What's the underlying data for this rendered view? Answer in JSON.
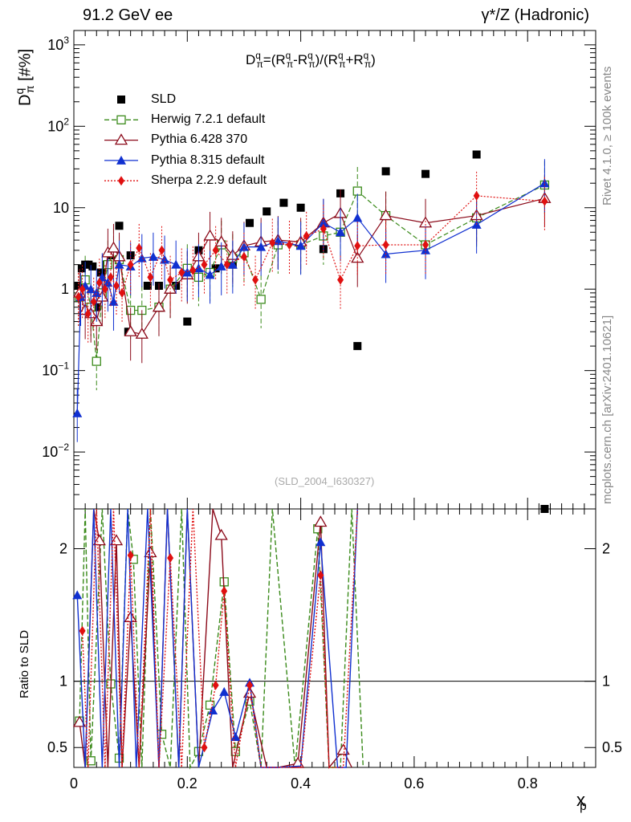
{
  "header": {
    "left": "91.2 GeV ee",
    "right": "γ*/Z (Hadronic)"
  },
  "side_labels": {
    "top": "Rivet 4.1.0, ≥ 100k events",
    "bottom": "mcplots.cern.ch [arXiv:2401.10621]"
  },
  "watermark": "(SLD_2004_I630327)",
  "chart_data": [
    {
      "type": "scatter",
      "title": "D^q_π^- = (R^q_π^- − R^q_π^+)/(R^q_π^- + R^q_π^+)",
      "title_parts": [
        "D",
        "q",
        "π",
        "=(R",
        "q",
        "π",
        "-R",
        "q",
        "π",
        ")/(R",
        "q",
        "π",
        "+R",
        "q",
        "π",
        ")"
      ],
      "ylabel_parts": [
        "D",
        "q",
        "π",
        " [#%]"
      ],
      "xlabel_parts": [
        "x",
        "p"
      ],
      "y_scale": "log",
      "ylim": [
        0.002,
        1500
      ],
      "xlim": [
        0,
        0.92
      ],
      "y_ticks": [
        {
          "v": 0.01,
          "m": "10",
          "e": "−2"
        },
        {
          "v": 0.1,
          "m": "10",
          "e": "−1"
        },
        {
          "v": 1,
          "m": "1",
          "e": ""
        },
        {
          "v": 10,
          "m": "10",
          "e": ""
        },
        {
          "v": 100,
          "m": "10",
          "e": "2"
        },
        {
          "v": 1000,
          "m": "10",
          "e": "3"
        }
      ],
      "legend_position": "top-left",
      "series": [
        {
          "name": "SLD",
          "color": "#000000",
          "marker": "square",
          "x": [
            0.008,
            0.014,
            0.02,
            0.026,
            0.033,
            0.04,
            0.048,
            0.058,
            0.068,
            0.08,
            0.096,
            0.1,
            0.13,
            0.15,
            0.18,
            0.2,
            0.22,
            0.25,
            0.28,
            0.31,
            0.34,
            0.37,
            0.4,
            0.44,
            0.47,
            0.5,
            0.55,
            0.62,
            0.71,
            0.83
          ],
          "y": [
            1.1,
            1.8,
            2.0,
            2.0,
            1.9,
            0.6,
            1.6,
            2.0,
            2.6,
            6.0,
            0.3,
            2.6,
            1.1,
            1.1,
            1.1,
            0.4,
            3.0,
            1.8,
            2.0,
            6.5,
            9.0,
            11.5,
            10.0,
            3.1,
            15.0,
            0.2,
            28.0,
            26.0,
            45.0,
            0.002
          ]
        },
        {
          "name": "Herwig 7.2.1 default",
          "color": "#3a8a1a",
          "marker": "open-square",
          "line": "dashed",
          "x": [
            0.01,
            0.02,
            0.03,
            0.04,
            0.05,
            0.06,
            0.07,
            0.08,
            0.1,
            0.12,
            0.15,
            0.17,
            0.2,
            0.22,
            0.24,
            0.26,
            0.28,
            0.3,
            0.33,
            0.36,
            0.4,
            0.44,
            0.47,
            0.5,
            0.55,
            0.62,
            0.71,
            0.83
          ],
          "y": [
            0.8,
            1.3,
            0.6,
            0.13,
            0.9,
            2.0,
            2.8,
            2.3,
            0.55,
            0.55,
            0.6,
            1.0,
            1.8,
            1.4,
            1.6,
            3.5,
            2.4,
            2.8,
            0.75,
            3.5,
            3.5,
            4.5,
            5.0,
            16.0,
            8.0,
            3.5,
            7.5,
            19.0
          ]
        },
        {
          "name": "Pythia 6.428 370",
          "color": "#8b0a1a",
          "marker": "open-triangle",
          "line": "solid",
          "x": [
            0.01,
            0.02,
            0.03,
            0.04,
            0.05,
            0.06,
            0.07,
            0.08,
            0.1,
            0.12,
            0.15,
            0.17,
            0.2,
            0.22,
            0.24,
            0.26,
            0.28,
            0.3,
            0.33,
            0.36,
            0.4,
            0.44,
            0.47,
            0.5,
            0.55,
            0.62,
            0.71,
            0.83
          ],
          "y": [
            0.9,
            0.55,
            0.5,
            0.4,
            0.8,
            2.8,
            3.2,
            2.5,
            0.3,
            0.28,
            0.6,
            1.0,
            1.5,
            2.5,
            4.5,
            3.8,
            2.6,
            3.4,
            3.8,
            4.0,
            3.8,
            6.5,
            8.5,
            2.4,
            8.0,
            6.5,
            8.0,
            13.0
          ]
        },
        {
          "name": "Pythia 8.315 default",
          "color": "#1030d0",
          "marker": "triangle",
          "line": "solid",
          "x": [
            0.006,
            0.012,
            0.02,
            0.03,
            0.04,
            0.05,
            0.06,
            0.07,
            0.08,
            0.1,
            0.12,
            0.14,
            0.16,
            0.18,
            0.2,
            0.22,
            0.24,
            0.26,
            0.28,
            0.3,
            0.33,
            0.36,
            0.4,
            0.44,
            0.47,
            0.5,
            0.55,
            0.62,
            0.71,
            0.83
          ],
          "y": [
            0.03,
            0.8,
            1.1,
            1.0,
            0.9,
            1.4,
            1.2,
            0.7,
            2.0,
            1.9,
            2.4,
            2.5,
            2.3,
            2.0,
            1.6,
            1.8,
            1.5,
            1.9,
            2.0,
            3.3,
            3.3,
            3.9,
            3.4,
            6.5,
            5.0,
            7.5,
            2.7,
            3.0,
            6.2,
            20.0
          ]
        },
        {
          "name": "Sherpa 2.2.9 default",
          "color": "#e01010",
          "marker": "diamond",
          "line": "dotted",
          "x": [
            0.008,
            0.015,
            0.025,
            0.035,
            0.045,
            0.055,
            0.065,
            0.075,
            0.085,
            0.1,
            0.115,
            0.135,
            0.155,
            0.17,
            0.19,
            0.21,
            0.23,
            0.25,
            0.27,
            0.3,
            0.32,
            0.35,
            0.38,
            0.41,
            0.44,
            0.47,
            0.5,
            0.55,
            0.62,
            0.71,
            0.83
          ],
          "y": [
            0.8,
            1.0,
            0.5,
            0.7,
            1.2,
            1.0,
            1.4,
            1.1,
            0.9,
            2.0,
            3.2,
            1.4,
            3.0,
            1.3,
            1.6,
            1.7,
            2.0,
            3.0,
            2.0,
            2.5,
            1.3,
            3.7,
            3.5,
            4.5,
            5.5,
            1.3,
            3.4,
            3.5,
            3.5,
            14.0,
            12.0
          ]
        }
      ]
    },
    {
      "type": "line",
      "ylabel": "Ratio to SLD",
      "ylim": [
        0.35,
        2.3
      ],
      "xlim": [
        0,
        0.92
      ],
      "x_ticks": [
        0,
        0.2,
        0.4,
        0.6,
        0.8
      ],
      "x_tick_labels": [
        "0",
        "0.2",
        "0.4",
        "0.6",
        "0.8"
      ],
      "y_ticks": [
        0.5,
        1,
        2
      ],
      "y_tick_labels": [
        "0.5",
        "1",
        "2"
      ],
      "reference_line": 1,
      "series": [
        {
          "name": "Herwig 7.2.1 default",
          "color": "#3a8a1a",
          "marker": "open-square",
          "line": "dashed",
          "x": [
            0.01,
            0.02,
            0.03,
            0.05,
            0.065,
            0.08,
            0.095,
            0.105,
            0.12,
            0.135,
            0.155,
            0.17,
            0.19,
            0.205,
            0.22,
            0.24,
            0.265,
            0.285,
            0.31,
            0.33,
            0.35,
            0.39,
            0.43,
            0.45,
            0.47,
            0.49,
            0.51
          ],
          "y": [
            0.7,
            2.4,
            0.4,
            2.4,
            0.98,
            0.42,
            2.4,
            1.92,
            0.35,
            2.4,
            0.6,
            0.35,
            2.4,
            0.35,
            0.47,
            0.82,
            1.75,
            0.47,
            0.85,
            0.35,
            2.4,
            0.35,
            2.15,
            0.35,
            0.35,
            2.4,
            0.35
          ]
        },
        {
          "name": "Pythia 6.428 370",
          "color": "#8b0a1a",
          "marker": "open-triangle",
          "line": "solid",
          "x": [
            0.01,
            0.02,
            0.035,
            0.045,
            0.06,
            0.075,
            0.085,
            0.1,
            0.115,
            0.135,
            0.15,
            0.165,
            0.185,
            0.2,
            0.22,
            0.245,
            0.26,
            0.28,
            0.31,
            0.34,
            0.36,
            0.395,
            0.435,
            0.45,
            0.475,
            0.49
          ],
          "y": [
            0.69,
            0.35,
            2.4,
            2.06,
            0.35,
            2.06,
            0.35,
            1.48,
            0.35,
            1.97,
            0.35,
            2.4,
            0.35,
            2.4,
            0.35,
            2.4,
            2.1,
            0.35,
            0.91,
            0.35,
            0.35,
            0.38,
            2.2,
            0.35,
            0.48,
            0.35
          ]
        },
        {
          "name": "Pythia 8.315 default",
          "color": "#1030d0",
          "marker": "triangle",
          "line": "solid",
          "x": [
            0.006,
            0.02,
            0.035,
            0.05,
            0.065,
            0.08,
            0.095,
            0.11,
            0.13,
            0.15,
            0.165,
            0.185,
            0.2,
            0.22,
            0.245,
            0.265,
            0.285,
            0.31,
            0.33,
            0.36,
            0.4,
            0.435,
            0.465,
            0.48,
            0.5
          ],
          "y": [
            1.65,
            0.35,
            2.4,
            0.35,
            2.4,
            0.35,
            2.4,
            0.35,
            2.4,
            0.35,
            2.4,
            0.35,
            2.4,
            0.35,
            0.78,
            0.92,
            0.58,
            0.99,
            0.35,
            0.35,
            0.36,
            2.05,
            0.35,
            0.35,
            2.4
          ]
        },
        {
          "name": "Sherpa 2.2.9 default",
          "color": "#e01010",
          "marker": "diamond",
          "line": "dotted",
          "x": [
            0.015,
            0.025,
            0.04,
            0.055,
            0.07,
            0.085,
            0.1,
            0.115,
            0.135,
            0.15,
            0.17,
            0.19,
            0.21,
            0.23,
            0.25,
            0.265,
            0.285,
            0.31,
            0.33,
            0.36,
            0.4,
            0.435,
            0.45,
            0.475,
            0.5
          ],
          "y": [
            1.38,
            0.35,
            2.4,
            0.35,
            2.4,
            0.35,
            1.95,
            0.35,
            2.4,
            0.35,
            1.93,
            0.35,
            2.4,
            0.5,
            0.97,
            1.68,
            0.35,
            0.97,
            0.35,
            0.35,
            0.35,
            1.8,
            0.35,
            0.35,
            2.4
          ]
        }
      ]
    }
  ]
}
